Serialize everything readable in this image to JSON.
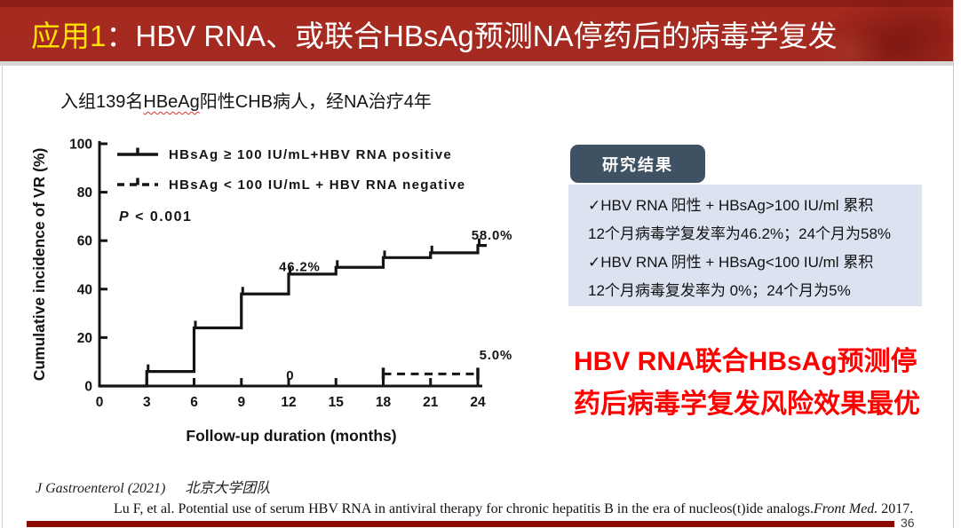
{
  "slide": {
    "title": {
      "prefix": "应用1",
      "rest": "：HBV RNA、或联合HBsAg预测NA停药后的病毒学复发"
    },
    "subtitle": {
      "pre": "入组139名",
      "highlight": "HBeAg",
      "post": "阳性CHB病人，经NA治疗4年"
    },
    "page_number": "36"
  },
  "results_panel": {
    "tab_label": "研究结果",
    "lines": [
      "✓HBV RNA 阳性 + HBsAg>100 IU/ml 累积",
      "12个月病毒学复发率为46.2%；24个月为58%",
      "✓HBV RNA 阴性 + HBsAg<100 IU/ml 累积",
      "12个月病毒复发率为 0%；24个月为5%"
    ]
  },
  "conclusion": {
    "lines": [
      "HBV RNA联合HBsAg预测停",
      "药后病毒学复发风险效果最优"
    ],
    "color": "#ff0000"
  },
  "footer": {
    "source_journal": "J Gastroenterol (2021)",
    "source_team": "北京大学团队",
    "citation_prefix": "Lu F, et al. Potential use of serum HBV RNA in antiviral therapy for chronic hepatitis B in the era of nucleos(t)ide analogs.",
    "citation_journal": "Front Med.",
    "citation_year": " 2017."
  },
  "colors": {
    "titlebar_red": "#a62a1f",
    "title_prefix_yellow": "#ffe200",
    "panel_tab_bg": "#3f5264",
    "panel_box_bg": "#dbe3f0",
    "conclusion_red": "#ff0000",
    "bottom_bar_red": "#8d0a02",
    "chart_ink": "#141414"
  },
  "chart_data": {
    "type": "line",
    "subtype": "kaplan-meier-step",
    "title": "",
    "xlabel": "Follow-up duration (months)",
    "ylabel": "Cumulative incidence of VR (%)",
    "xlim": [
      0,
      24
    ],
    "ylim": [
      0,
      100
    ],
    "x_ticks": [
      0,
      3,
      6,
      9,
      12,
      15,
      18,
      21,
      24
    ],
    "y_ticks": [
      0,
      20,
      40,
      60,
      80,
      100
    ],
    "grid": false,
    "legend_position": "inside-top-left",
    "p_value": "P < 0.001",
    "series": [
      {
        "name": "HBsAg ≥ 100 IU/mL+HBV RNA positive",
        "line_style": "solid",
        "steps": [
          [
            0,
            0
          ],
          [
            3,
            6
          ],
          [
            6,
            24
          ],
          [
            9,
            38
          ],
          [
            12,
            46.2
          ],
          [
            15,
            49
          ],
          [
            18,
            53
          ],
          [
            21,
            55
          ],
          [
            24,
            58
          ]
        ]
      },
      {
        "name": "HBsAg < 100 IU/mL + HBV RNA negative",
        "line_style": "dashed",
        "steps": [
          [
            0,
            0
          ],
          [
            18,
            5
          ],
          [
            24,
            5
          ]
        ]
      }
    ],
    "annotations": [
      {
        "text": "46.2%",
        "month": 12.7,
        "pct": 47.5,
        "anchor": "middle"
      },
      {
        "text": "58.0%",
        "month": 24.9,
        "pct": 60.5,
        "anchor": "middle"
      },
      {
        "text": "0",
        "month": 12.1,
        "pct": 2.5,
        "anchor": "middle"
      },
      {
        "text": "5.0%",
        "month": 26.2,
        "pct": 11,
        "anchor": "end"
      }
    ]
  }
}
